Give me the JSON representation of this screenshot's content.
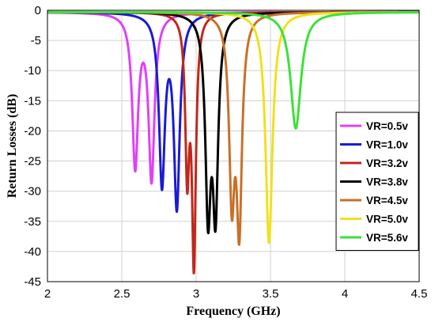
{
  "chart_data": {
    "type": "line",
    "title": "",
    "xlabel": "Frequency (GHz)",
    "ylabel": "Return Losses (dB)",
    "xlim": [
      2,
      4.5
    ],
    "ylim": [
      -45,
      0
    ],
    "xticks": [
      "2",
      "2.5",
      "3",
      "3.5",
      "4",
      "4.5"
    ],
    "yticks": [
      "0",
      "-5",
      "-10",
      "-15",
      "-20",
      "-25",
      "-30",
      "-35",
      "-40",
      "-45"
    ],
    "grid": true,
    "legend_position": "bottom-right",
    "series": [
      {
        "name": "VR=0.5v",
        "color": "#e040fb",
        "dips": [
          {
            "x": 2.59,
            "depth": 25.2,
            "w": 0.024
          },
          {
            "x": 2.7,
            "depth": 27.3,
            "w": 0.024
          }
        ],
        "baseline": 0.3
      },
      {
        "name": "VR=1.0v",
        "color": "#1a1ad6",
        "dips": [
          {
            "x": 2.77,
            "depth": 27.8,
            "w": 0.024
          },
          {
            "x": 2.87,
            "depth": 31.6,
            "w": 0.024
          }
        ],
        "baseline": 0.3
      },
      {
        "name": "VR=3.2v",
        "color": "#c0281c",
        "dips": [
          {
            "x": 2.94,
            "depth": 25.5,
            "w": 0.016
          },
          {
            "x": 2.985,
            "depth": 40.5,
            "w": 0.016
          }
        ],
        "baseline": 0.3
      },
      {
        "name": "VR=3.8v",
        "color": "#000000",
        "dips": [
          {
            "x": 3.08,
            "depth": 31.5,
            "w": 0.022
          },
          {
            "x": 3.13,
            "depth": 31.2,
            "w": 0.022
          }
        ],
        "baseline": 0.3
      },
      {
        "name": "VR=4.5v",
        "color": "#c8702a",
        "dips": [
          {
            "x": 3.24,
            "depth": 29.0,
            "w": 0.022
          },
          {
            "x": 3.29,
            "depth": 33.8,
            "w": 0.022
          }
        ],
        "baseline": 0.3
      },
      {
        "name": "VR=5.0v",
        "color": "#f0e020",
        "dips": [
          {
            "x": 3.49,
            "depth": 38.3,
            "w": 0.028
          }
        ],
        "baseline": 0.3
      },
      {
        "name": "VR=5.6v",
        "color": "#3ee03a",
        "dips": [
          {
            "x": 3.67,
            "depth": 19.3,
            "w": 0.042
          }
        ],
        "baseline": 0.3
      }
    ]
  }
}
